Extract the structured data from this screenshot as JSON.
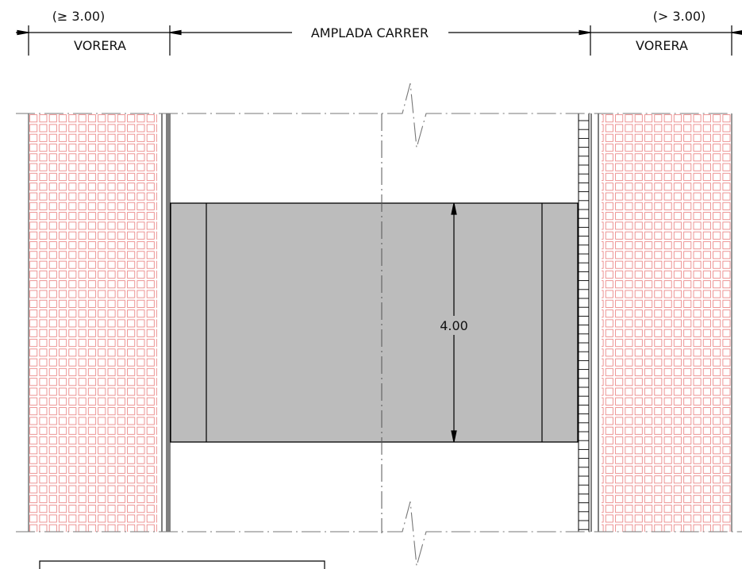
{
  "dimensions": {
    "left_sidewalk_width": "(≥ 3.00)",
    "right_sidewalk_width": "(> 3.00)",
    "left_sidewalk_label": "VORERA",
    "right_sidewalk_label": "VORERA",
    "street_width_label": "AMPLADA CARRER",
    "crossing_width": "4.00"
  },
  "colors": {
    "paving_grid": "#e87878",
    "crossing_fill": "#bcbcbc",
    "line": "#000000",
    "centerline": "#555555"
  }
}
